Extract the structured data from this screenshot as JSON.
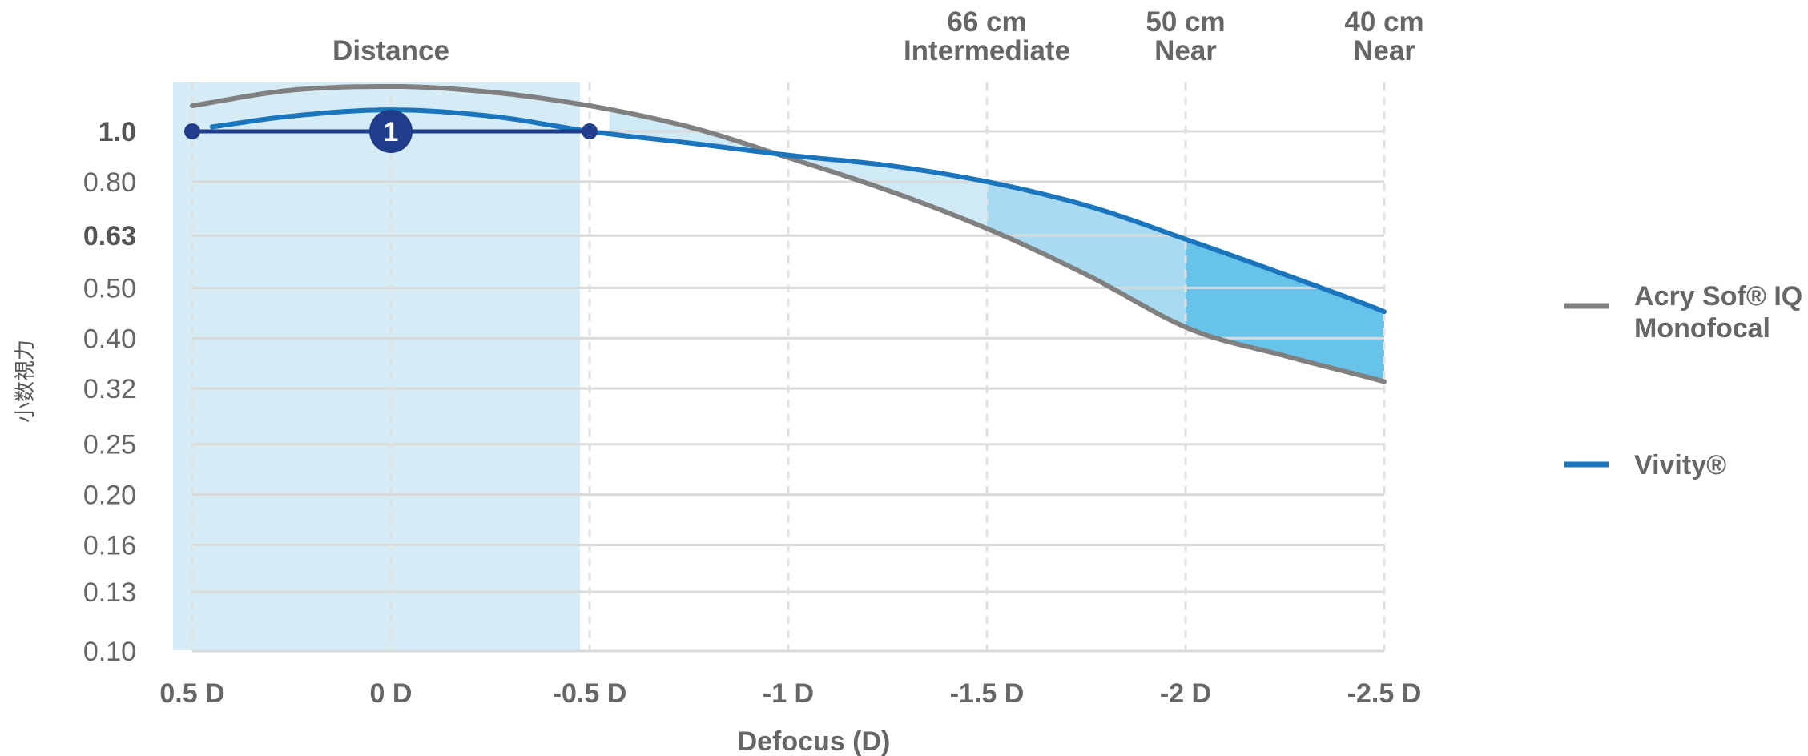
{
  "chart_data": {
    "type": "line",
    "ylabel": "小数視力",
    "xlabel": "Defocus (D)",
    "xlim": [
      0.5,
      -2.5
    ],
    "x_ticks": [
      0.5,
      0,
      -0.5,
      -1,
      -1.5,
      -2,
      -2.5
    ],
    "x_tick_labels": [
      "0.5 D",
      "0 D",
      "-0.5 D",
      "-1 D",
      "-1.5 D",
      "-2 D",
      "-2.5 D"
    ],
    "y_scale": "log",
    "y_ticks": [
      1.0,
      0.8,
      0.63,
      0.5,
      0.4,
      0.32,
      0.25,
      0.2,
      0.16,
      0.13,
      0.1
    ],
    "y_tick_labels": [
      "1.0",
      "0.80",
      "0.63",
      "0.50",
      "0.40",
      "0.32",
      "0.25",
      "0.20",
      "0.16",
      "0.13",
      "0.10"
    ],
    "y_tick_bold": [
      true,
      false,
      true,
      false,
      false,
      false,
      false,
      false,
      false,
      false,
      false
    ],
    "grid": true,
    "legend_position": "right",
    "zones": [
      {
        "lines": [
          "Distance"
        ],
        "x": 0.0
      },
      {
        "lines": [
          "66 cm",
          "Intermediate"
        ],
        "x": -1.5
      },
      {
        "lines": [
          "50 cm",
          "Near"
        ],
        "x": -2.0
      },
      {
        "lines": [
          "40 cm",
          "Near"
        ],
        "x": -2.5
      }
    ],
    "series": [
      {
        "name": "Acry Sof® IQ Monofocal",
        "color": "#808080",
        "x": [
          0.5,
          0.25,
          0.0,
          -0.25,
          -0.5,
          -0.75,
          -1.0,
          -1.25,
          -1.5,
          -1.75,
          -2.0,
          -2.25,
          -2.5
        ],
        "y": [
          1.12,
          1.2,
          1.22,
          1.19,
          1.12,
          1.02,
          0.89,
          0.77,
          0.65,
          0.53,
          0.42,
          0.37,
          0.33
        ]
      },
      {
        "name": "Vivity®",
        "color": "#1a75bc",
        "x": [
          0.45,
          0.25,
          0.0,
          -0.25,
          -0.5,
          -0.75,
          -1.0,
          -1.25,
          -1.5,
          -1.75,
          -2.0,
          -2.25,
          -2.5
        ],
        "y": [
          1.02,
          1.07,
          1.1,
          1.07,
          1.0,
          0.95,
          0.9,
          0.86,
          0.8,
          0.72,
          0.62,
          0.53,
          0.45
        ]
      }
    ],
    "range_marker": {
      "label": "1",
      "x_from": 0.5,
      "x_to": -0.5,
      "y": 1.0,
      "marker_x": 0.0
    }
  },
  "colors": {
    "distance_band": "#d5ecf7",
    "intermediate_fill": "#cfe9f7",
    "near50_fill": "#a8dbf2",
    "near40_fill": "#67c3e9",
    "marker": "#1f3d8a",
    "grid": "#d9d9d9",
    "grid_vertical": "#e1e1e1"
  }
}
